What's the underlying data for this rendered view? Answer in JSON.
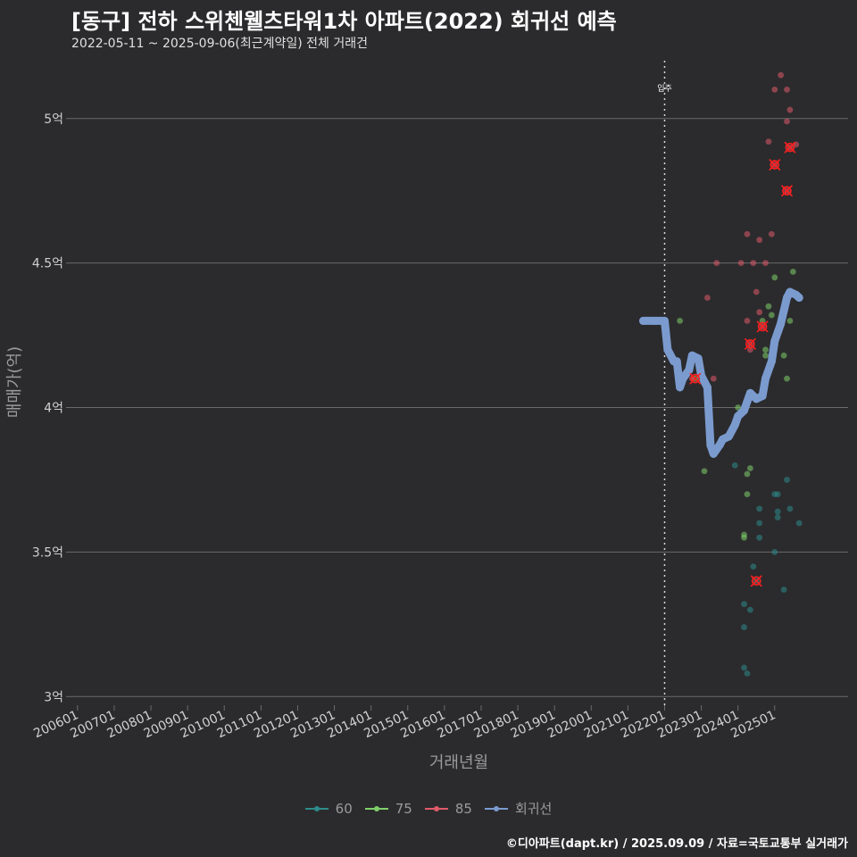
{
  "title": "[동구] 전하 스위첸웰츠타워1차 아파트(2022) 회귀선 예측",
  "subtitle": "2022-05-11 ~ 2025-09-06(최근계약일) 전체 거래건",
  "caption": "©디아파트(dapt.kr) / 2025.09.09 / 자료=국토교통부 실거래가",
  "colors": {
    "background": "#2b2b2d",
    "grid": "#6a6a6a",
    "s60": "#2e8b8b",
    "s75": "#7fd06a",
    "s85": "#e05a6a",
    "regression": "#7b9bcf",
    "highlight": "#ff2020"
  },
  "chart_data": {
    "type": "scatter",
    "xlabel": "거래년월",
    "ylabel": "매매가(억)",
    "xlim": [
      "2005-11",
      "2027-01"
    ],
    "ylim": [
      2.97,
      5.2
    ],
    "y_ticks": [
      3,
      3.5,
      4,
      4.5,
      5
    ],
    "y_tick_labels": [
      "3억",
      "3.5억",
      "4억",
      "4.5억",
      "5억"
    ],
    "x_ticks": [
      "2006-01",
      "2007-01",
      "2008-01",
      "2009-01",
      "2010-01",
      "2011-01",
      "2012-01",
      "2013-01",
      "2014-01",
      "2015-01",
      "2016-01",
      "2017-01",
      "2018-01",
      "2019-01",
      "2020-01",
      "2021-01",
      "2022-01",
      "2023-01",
      "2024-01",
      "2025-01"
    ],
    "x_tick_labels": [
      "200601",
      "200701",
      "200801",
      "200901",
      "201001",
      "201101",
      "201201",
      "201301",
      "201401",
      "201501",
      "201601",
      "201701",
      "201801",
      "201901",
      "202001",
      "202101",
      "202201",
      "202301",
      "202401",
      "202501"
    ],
    "grid": "horizontal",
    "legend_position": "bottom",
    "vline": {
      "x": "2022-01",
      "label": "입주"
    },
    "series": [
      {
        "name": "60",
        "points": [
          [
            "2023-12",
            3.8
          ],
          [
            "2024-03",
            3.32
          ],
          [
            "2024-03",
            3.24
          ],
          [
            "2024-03",
            3.1
          ],
          [
            "2024-04",
            3.08
          ],
          [
            "2024-05",
            3.3
          ],
          [
            "2024-06",
            3.45
          ],
          [
            "2024-08",
            3.65
          ],
          [
            "2024-08",
            3.6
          ],
          [
            "2024-08",
            3.55
          ],
          [
            "2024-07",
            3.4
          ],
          [
            "2025-01",
            3.7
          ],
          [
            "2025-02",
            3.7
          ],
          [
            "2025-01",
            3.5
          ],
          [
            "2025-02",
            3.64
          ],
          [
            "2025-02",
            3.62
          ],
          [
            "2025-05",
            3.75
          ],
          [
            "2025-06",
            3.65
          ],
          [
            "2025-04",
            3.37
          ],
          [
            "2025-09",
            3.6
          ]
        ]
      },
      {
        "name": "75",
        "points": [
          [
            "2022-06",
            4.3
          ],
          [
            "2022-11",
            4.1
          ],
          [
            "2023-02",
            3.78
          ],
          [
            "2024-01",
            4.0
          ],
          [
            "2024-03",
            3.56
          ],
          [
            "2024-03",
            3.55
          ],
          [
            "2024-04",
            3.7
          ],
          [
            "2024-04",
            3.77
          ],
          [
            "2024-05",
            3.79
          ],
          [
            "2024-09",
            4.3
          ],
          [
            "2024-11",
            4.35
          ],
          [
            "2024-12",
            4.32
          ],
          [
            "2025-01",
            4.45
          ],
          [
            "2025-04",
            4.18
          ],
          [
            "2025-05",
            4.1
          ],
          [
            "2025-06",
            4.3
          ],
          [
            "2025-07",
            4.47
          ],
          [
            "2024-10",
            4.18
          ],
          [
            "2024-10",
            4.2
          ]
        ]
      },
      {
        "name": "85",
        "points": [
          [
            "2022-10",
            4.1
          ],
          [
            "2023-03",
            4.38
          ],
          [
            "2023-05",
            4.1
          ],
          [
            "2023-06",
            4.5
          ],
          [
            "2024-02",
            4.5
          ],
          [
            "2024-04",
            4.6
          ],
          [
            "2024-04",
            4.3
          ],
          [
            "2024-05",
            4.2
          ],
          [
            "2024-06",
            4.5
          ],
          [
            "2024-07",
            4.4
          ],
          [
            "2024-08",
            4.33
          ],
          [
            "2024-08",
            4.58
          ],
          [
            "2024-10",
            4.5
          ],
          [
            "2024-11",
            4.92
          ],
          [
            "2024-12",
            4.6
          ],
          [
            "2025-01",
            5.1
          ],
          [
            "2025-03",
            5.15
          ],
          [
            "2025-05",
            5.1
          ],
          [
            "2025-05",
            4.99
          ],
          [
            "2025-06",
            5.03
          ],
          [
            "2025-08",
            4.91
          ],
          [
            "2024-05",
            4.22
          ],
          [
            "2024-09",
            4.28
          ],
          [
            "2025-01",
            4.84
          ],
          [
            "2025-05",
            4.75
          ],
          [
            "2025-06",
            4.9
          ]
        ]
      },
      {
        "name": "회귀선",
        "points": [
          [
            "2021-06",
            4.3
          ],
          [
            "2021-10",
            4.3
          ],
          [
            "2022-01",
            4.3
          ],
          [
            "2022-02",
            4.2
          ],
          [
            "2022-04",
            4.16
          ],
          [
            "2022-05",
            4.16
          ],
          [
            "2022-06",
            4.07
          ],
          [
            "2022-07",
            4.1
          ],
          [
            "2022-09",
            4.13
          ],
          [
            "2022-10",
            4.18
          ],
          [
            "2022-12",
            4.17
          ],
          [
            "2023-01",
            4.11
          ],
          [
            "2023-03",
            4.07
          ],
          [
            "2023-04",
            3.87
          ],
          [
            "2023-05",
            3.84
          ],
          [
            "2023-07",
            3.87
          ],
          [
            "2023-08",
            3.89
          ],
          [
            "2023-10",
            3.9
          ],
          [
            "2023-12",
            3.94
          ],
          [
            "2024-01",
            3.97
          ],
          [
            "2024-03",
            3.99
          ],
          [
            "2024-05",
            4.05
          ],
          [
            "2024-07",
            4.03
          ],
          [
            "2024-09",
            4.04
          ],
          [
            "2024-10",
            4.1
          ],
          [
            "2024-12",
            4.16
          ],
          [
            "2025-01",
            4.23
          ],
          [
            "2025-03",
            4.29
          ],
          [
            "2025-05",
            4.38
          ],
          [
            "2025-06",
            4.4
          ],
          [
            "2025-08",
            4.39
          ],
          [
            "2025-09",
            4.38
          ]
        ]
      }
    ],
    "highlighted": [
      [
        "2022-11",
        4.1
      ],
      [
        "2024-05",
        4.22
      ],
      [
        "2024-09",
        4.28
      ],
      [
        "2024-07",
        3.4
      ],
      [
        "2025-01",
        4.84
      ],
      [
        "2025-05",
        4.75
      ],
      [
        "2025-06",
        4.9
      ]
    ]
  }
}
